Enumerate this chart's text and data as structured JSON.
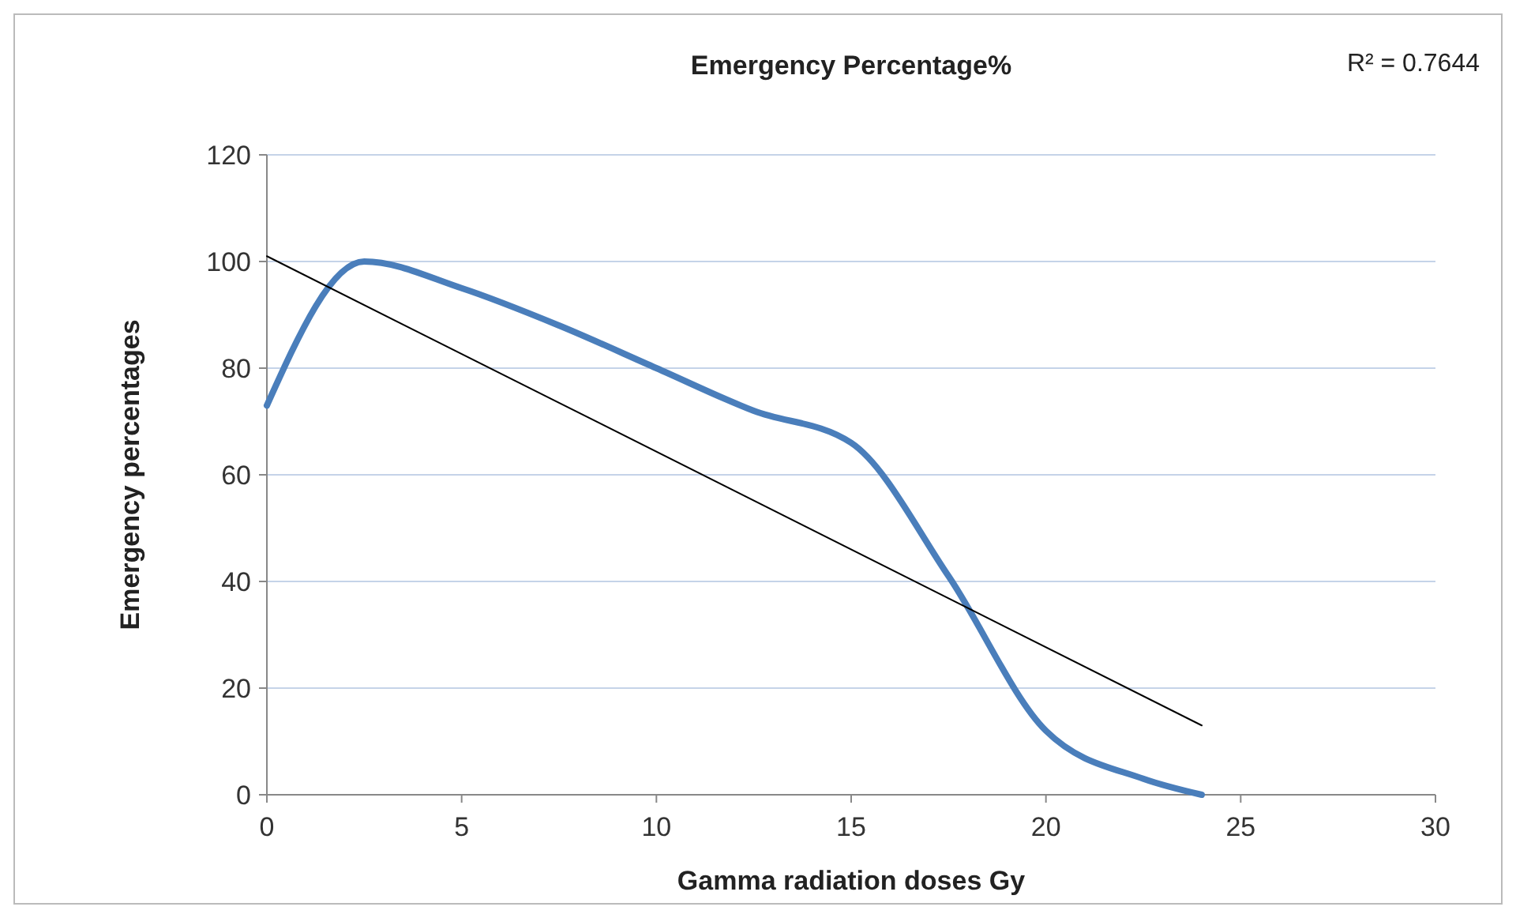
{
  "chart_data": {
    "type": "line",
    "title": "Emergency Percentage%",
    "xlabel": "Gamma radiation doses Gy",
    "ylabel": "Emergency percentages",
    "annotations": [
      "R² = 0.7644"
    ],
    "xlim": [
      0,
      30
    ],
    "xticks": [
      0,
      5,
      10,
      15,
      20,
      25,
      30
    ],
    "ylim": [
      0,
      120
    ],
    "yticks": [
      0,
      20,
      40,
      60,
      80,
      100,
      120
    ],
    "grid": "y",
    "series": [
      {
        "color": "#4a7ebb",
        "x": [
          0,
          2.5,
          5,
          7.5,
          10,
          12.5,
          15,
          17.5,
          20,
          22.5,
          24
        ],
        "values": [
          73,
          100,
          95,
          88,
          80,
          72,
          66,
          41,
          12,
          3,
          0
        ]
      },
      {
        "type": "line",
        "color": "#000000",
        "x": [
          0,
          24
        ],
        "values": [
          101,
          13
        ]
      }
    ]
  }
}
